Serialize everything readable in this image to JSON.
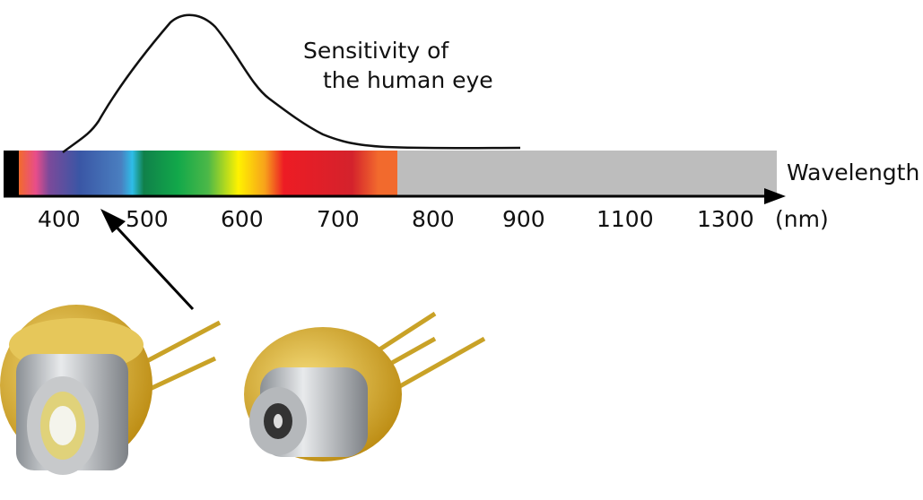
{
  "curve_label": [
    "Sensitivity of",
    "the human eye"
  ],
  "axis_label": "Wavelength",
  "unit": "(nm)",
  "ticks": [
    "400",
    "500",
    "600",
    "700",
    "800",
    "900",
    "1100",
    "1300"
  ],
  "colors": {
    "nonvisible": "#bdbdbd",
    "uv_edge": "#000000",
    "curve": "#111111"
  }
}
